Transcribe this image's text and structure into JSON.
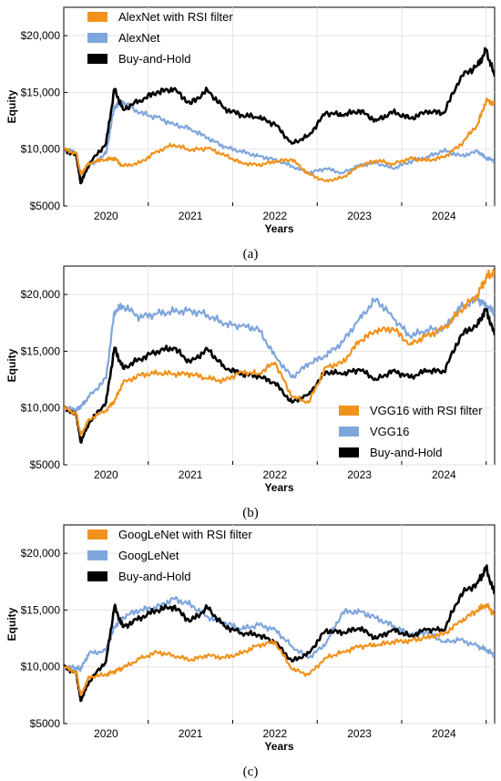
{
  "chart_data": [
    {
      "type": "line",
      "title": "",
      "xlabel": "Years",
      "ylabel": "Equity",
      "xlim": [
        2019.5,
        2024.6
      ],
      "ylim": [
        5000,
        22500
      ],
      "x_ticks": [
        "2020",
        "2021",
        "2022",
        "2023",
        "2024"
      ],
      "y_ticks": [
        "$5000",
        "$10,000",
        "$15,000",
        "$20,000"
      ],
      "grid": true,
      "legend_position": "top-left",
      "caption": "(a)",
      "x": [
        2019.5,
        2019.65,
        2019.7,
        2019.8,
        2020.0,
        2020.1,
        2020.2,
        2020.4,
        2020.6,
        2020.8,
        2021.0,
        2021.2,
        2021.4,
        2021.6,
        2021.8,
        2022.0,
        2022.2,
        2022.4,
        2022.6,
        2022.8,
        2023.0,
        2023.2,
        2023.4,
        2023.6,
        2023.8,
        2024.0,
        2024.2,
        2024.4,
        2024.5,
        2024.6
      ],
      "series": [
        {
          "name": "AlexNet with RSI filter",
          "color": "#f0921c",
          "values": [
            10000,
            9600,
            7800,
            8800,
            9100,
            9200,
            8500,
            8800,
            9800,
            10400,
            9900,
            10100,
            9500,
            8800,
            8600,
            8900,
            9100,
            7800,
            7200,
            7500,
            8500,
            9000,
            8700,
            9200,
            9000,
            9300,
            10400,
            12200,
            14300,
            14000
          ]
        },
        {
          "name": "AlexNet",
          "color": "#7fa6dc",
          "values": [
            10000,
            9700,
            7300,
            8500,
            9600,
            13800,
            14200,
            13200,
            12800,
            12200,
            11800,
            11000,
            10200,
            9800,
            9400,
            9100,
            8500,
            7900,
            8300,
            7900,
            8600,
            8800,
            8300,
            8900,
            9300,
            9900,
            9400,
            9800,
            9200,
            9000
          ]
        },
        {
          "name": "Buy-and-Hold",
          "color": "#000000",
          "values": [
            10000,
            9400,
            7000,
            8700,
            10500,
            15300,
            13500,
            14300,
            15000,
            15300,
            14000,
            15200,
            13600,
            13000,
            12800,
            12200,
            10500,
            11200,
            13200,
            13000,
            13400,
            12500,
            13300,
            12700,
            13300,
            13200,
            16400,
            17400,
            18700,
            16400
          ]
        }
      ]
    },
    {
      "type": "line",
      "title": "",
      "xlabel": "Years",
      "ylabel": "Equity",
      "xlim": [
        2019.5,
        2024.6
      ],
      "ylim": [
        5000,
        22500
      ],
      "x_ticks": [
        "2020",
        "2021",
        "2022",
        "2023",
        "2024"
      ],
      "y_ticks": [
        "$5000",
        "$10,000",
        "$15,000",
        "$20,000"
      ],
      "grid": true,
      "legend_position": "bottom-right",
      "caption": "(b)",
      "x": [
        2019.5,
        2019.65,
        2019.7,
        2019.8,
        2020.0,
        2020.1,
        2020.2,
        2020.4,
        2020.6,
        2020.8,
        2021.0,
        2021.2,
        2021.4,
        2021.6,
        2021.8,
        2022.0,
        2022.2,
        2022.4,
        2022.6,
        2022.8,
        2023.0,
        2023.2,
        2023.4,
        2023.6,
        2023.8,
        2024.0,
        2024.2,
        2024.4,
        2024.5,
        2024.6
      ],
      "series": [
        {
          "name": "VGG16 with RSI filter",
          "color": "#f0921c",
          "values": [
            10000,
            9500,
            7600,
            9000,
            9800,
            10600,
            12200,
            12900,
            13100,
            13000,
            13000,
            12600,
            12400,
            13200,
            13000,
            14000,
            11000,
            10500,
            13600,
            14000,
            15900,
            16800,
            17000,
            15600,
            16400,
            17000,
            18600,
            20000,
            21500,
            22000
          ]
        },
        {
          "name": "VGG16",
          "color": "#7fa6dc",
          "values": [
            10000,
            9900,
            10100,
            11000,
            12600,
            18500,
            19000,
            18000,
            18300,
            18500,
            18600,
            18200,
            17400,
            17200,
            17000,
            14600,
            12700,
            13900,
            14600,
            15800,
            17900,
            19600,
            17900,
            16300,
            16900,
            17000,
            18900,
            19600,
            19000,
            18400
          ]
        },
        {
          "name": "Buy-and-Hold",
          "color": "#000000",
          "values": [
            10000,
            9400,
            7000,
            8700,
            10500,
            15300,
            13500,
            14300,
            15000,
            15300,
            14000,
            15200,
            13600,
            13000,
            12800,
            12200,
            10500,
            11200,
            13200,
            13000,
            13400,
            12500,
            13300,
            12700,
            13300,
            13200,
            16400,
            17400,
            18700,
            16400
          ]
        }
      ]
    },
    {
      "type": "line",
      "title": "",
      "xlabel": "Years",
      "ylabel": "Equity",
      "xlim": [
        2019.5,
        2024.6
      ],
      "ylim": [
        5000,
        22500
      ],
      "x_ticks": [
        "2020",
        "2021",
        "2022",
        "2023",
        "2024"
      ],
      "y_ticks": [
        "$5000",
        "$10,000",
        "$15,000",
        "$20,000"
      ],
      "grid": true,
      "legend_position": "top-left",
      "caption": "(c)",
      "x": [
        2019.5,
        2019.65,
        2019.7,
        2019.8,
        2020.0,
        2020.1,
        2020.2,
        2020.4,
        2020.6,
        2020.8,
        2021.0,
        2021.2,
        2021.4,
        2021.6,
        2021.8,
        2022.0,
        2022.2,
        2022.4,
        2022.6,
        2022.8,
        2023.0,
        2023.2,
        2023.4,
        2023.6,
        2023.8,
        2024.0,
        2024.2,
        2024.4,
        2024.5,
        2024.6
      ],
      "series": [
        {
          "name": "GoogLeNet with RSI filter",
          "color": "#f0921c",
          "values": [
            10000,
            9500,
            7500,
            9100,
            9300,
            9600,
            9900,
            10700,
            11300,
            11000,
            10600,
            11000,
            10800,
            11200,
            11900,
            12200,
            9800,
            9300,
            10800,
            11300,
            11800,
            11900,
            12200,
            12300,
            12600,
            12900,
            14000,
            15000,
            15500,
            14600
          ]
        },
        {
          "name": "GoogLeNet",
          "color": "#7fa6dc",
          "values": [
            10000,
            9900,
            9800,
            11200,
            11400,
            13500,
            14400,
            15000,
            15200,
            16000,
            15500,
            14400,
            13900,
            13300,
            13700,
            13300,
            11800,
            10800,
            12000,
            14800,
            14900,
            14300,
            13600,
            12800,
            13100,
            12200,
            12400,
            11800,
            11500,
            11000
          ]
        },
        {
          "name": "Buy-and-Hold",
          "color": "#000000",
          "values": [
            10000,
            9400,
            7000,
            8700,
            10500,
            15300,
            13500,
            14300,
            15000,
            15300,
            14000,
            15200,
            13600,
            13000,
            12800,
            12200,
            10500,
            11200,
            13200,
            13000,
            13400,
            12500,
            13300,
            12700,
            13300,
            13200,
            16400,
            17400,
            18700,
            16400
          ]
        }
      ]
    }
  ]
}
